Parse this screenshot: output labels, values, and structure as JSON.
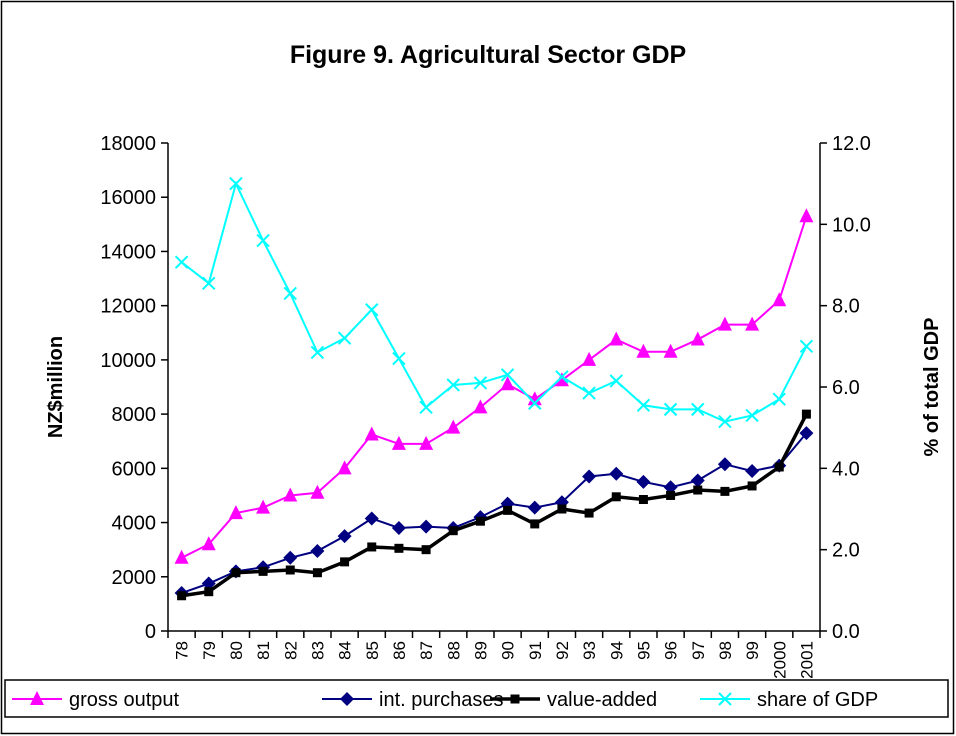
{
  "chart_data": {
    "type": "line",
    "title": "Figure 9. Agricultural Sector GDP",
    "y_label": "NZ$million",
    "y2_label": "% of total GDP",
    "categories": [
      "78",
      "79",
      "80",
      "81",
      "82",
      "83",
      "84",
      "85",
      "86",
      "87",
      "88",
      "89",
      "90",
      "91",
      "92",
      "93",
      "94",
      "95",
      "96",
      "97",
      "98",
      "99",
      "2000",
      "2001"
    ],
    "ylim": [
      0,
      18000
    ],
    "yticks": [
      0,
      2000,
      4000,
      6000,
      8000,
      10000,
      12000,
      14000,
      16000,
      18000
    ],
    "y2lim": [
      0,
      12
    ],
    "y2ticks": [
      {
        "value": 0,
        "label": "0.0"
      },
      {
        "value": 2,
        "label": "2.0"
      },
      {
        "value": 4,
        "label": "4.0"
      },
      {
        "value": 6,
        "label": "6.0"
      },
      {
        "value": 8,
        "label": "8.0"
      },
      {
        "value": 10,
        "label": "10.0"
      },
      {
        "value": 12,
        "label": "12.0"
      }
    ],
    "legend": "bottom",
    "series": [
      {
        "name": "gross output",
        "color": "#ff00ff",
        "marker": "triangle",
        "values": [
          2700,
          3200,
          4350,
          4550,
          5000,
          5100,
          6000,
          7250,
          6900,
          6900,
          7500,
          8250,
          9100,
          8550,
          9250,
          10000,
          10750,
          10300,
          10300,
          10750,
          11300,
          11300,
          12200,
          15300
        ]
      },
      {
        "name": "int. purchases",
        "color": "#000080",
        "marker": "diamond",
        "values": [
          1400,
          1750,
          2200,
          2350,
          2700,
          2950,
          3500,
          4150,
          3800,
          3850,
          3800,
          4200,
          4700,
          4550,
          4750,
          5700,
          5800,
          5500,
          5300,
          5550,
          6150,
          5900,
          6100,
          7300
        ]
      },
      {
        "name": "value-added",
        "color": "#000000",
        "marker": "square",
        "values": [
          1300,
          1450,
          2150,
          2200,
          2250,
          2150,
          2550,
          3100,
          3050,
          3000,
          3700,
          4050,
          4450,
          3950,
          4500,
          4350,
          4950,
          4850,
          5000,
          5200,
          5150,
          5350,
          6050,
          8000
        ]
      },
      {
        "name": "share of GDP",
        "color": "#00ffff",
        "marker": "x",
        "axis": "y2",
        "values": [
          9.07,
          8.55,
          11.0,
          9.6,
          8.3,
          6.85,
          7.2,
          7.9,
          6.7,
          5.5,
          6.05,
          6.1,
          6.3,
          5.6,
          6.25,
          5.85,
          6.15,
          5.55,
          5.45,
          5.45,
          5.15,
          5.3,
          5.7,
          7.0
        ]
      }
    ]
  }
}
